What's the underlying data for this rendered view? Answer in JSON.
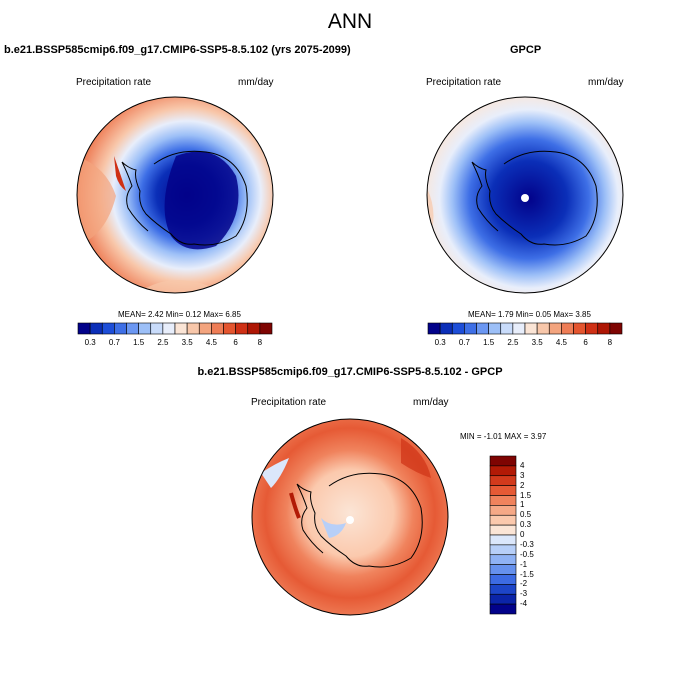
{
  "figure": {
    "title": "ANN"
  },
  "panels": {
    "model": {
      "title": "b.e21.BSSP585cmip6.f09_g17.CMIP6-SSP5-8.5.102 (yrs 2075-2099)",
      "left_label": "Precipitation rate",
      "right_label": "mm/day",
      "stats": "MEAN=   2.42  Min=   0.12  Max=   6.85"
    },
    "obs": {
      "title": "GPCP",
      "left_label": "Precipitation rate",
      "right_label": "mm/day",
      "stats": "MEAN=   1.79  Min=   0.05  Max=   3.85"
    },
    "diff": {
      "title": "b.e21.BSSP585cmip6.f09_g17.CMIP6-SSP5-8.5.102 - GPCP",
      "left_label": "Precipitation rate",
      "right_label": "mm/day",
      "stats": "MIN =  -1.01  MAX =   3.97"
    }
  },
  "colorbars": {
    "abs": {
      "labels": [
        "0.3",
        "0.7",
        "1.5",
        "2.5",
        "3.5",
        "4.5",
        "6",
        "8"
      ],
      "colors": [
        "#02028a",
        "#0b2fb8",
        "#1d4ed8",
        "#3e6fe6",
        "#6b97f2",
        "#9cbff7",
        "#c9dcfb",
        "#e8eefb",
        "#fbe5d6",
        "#f8c7aa",
        "#f3a47e",
        "#ee7d56",
        "#e4552f",
        "#cf3015",
        "#ae1604",
        "#7e0402"
      ]
    },
    "diff": {
      "labels": [
        "4",
        "3",
        "2",
        "1.5",
        "1",
        "0.5",
        "0.3",
        "0",
        "-0.3",
        "-0.5",
        "-1",
        "-1.5",
        "-2",
        "-3",
        "-4"
      ],
      "colors": [
        "#7e0402",
        "#b21a06",
        "#d23a1c",
        "#e65a35",
        "#f0835d",
        "#f6a987",
        "#fbc9ad",
        "#fbe5d6",
        "#dbe7fb",
        "#b7cff8",
        "#8fb2f4",
        "#6691ed",
        "#3d6be3",
        "#1d45c8",
        "#0b24a8",
        "#02028a"
      ]
    }
  },
  "colors": {
    "coastline": "#000000",
    "map_border": "#000000"
  }
}
